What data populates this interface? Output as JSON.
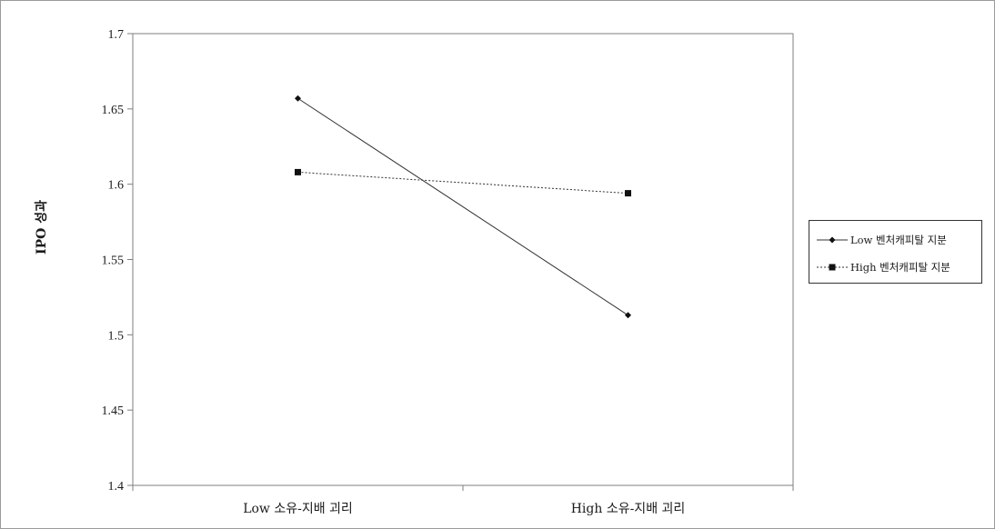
{
  "chart_data": {
    "type": "line",
    "categories": [
      "Low 소유-지배 괴리",
      "High 소유-지배 괴리"
    ],
    "series": [
      {
        "name": "Low 벤처캐피탈 지분",
        "values": [
          1.657,
          1.513
        ],
        "color": "#333333",
        "line_style": "solid",
        "marker": "diamond"
      },
      {
        "name": "High 벤처캐피탈 지분",
        "values": [
          1.608,
          1.594
        ],
        "color": "#333333",
        "line_style": "dashed",
        "marker": "square"
      }
    ],
    "xlabel": "",
    "ylabel": "IPO 성과",
    "ylim": [
      1.4,
      1.7
    ],
    "yticks": [
      "1.4",
      "1.45",
      "1.5",
      "1.55",
      "1.6",
      "1.65",
      "1.7"
    ],
    "grid": false,
    "legend_position": "right"
  }
}
